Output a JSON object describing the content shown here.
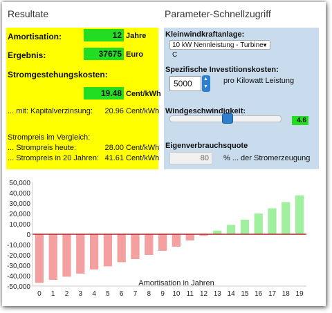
{
  "results": {
    "heading": "Resultate",
    "amortisation": {
      "label": "Amortisation:",
      "value": "12",
      "unit": "Jahre"
    },
    "ergebnis": {
      "label": "Ergebnis:",
      "value": "37675",
      "unit": "Euro"
    },
    "strom_kosten": {
      "label": "Stromgestehungskosten:",
      "value": "19.48",
      "unit": "Cent/kWh"
    },
    "kapitalverzinsung": {
      "label": "... mit: Kapitalverzinsung:",
      "value": "20.96",
      "unit": "Cent/kWh"
    },
    "vergleich_label": "Strompreis im Vergleich:",
    "strompreis_heute": {
      "label": "... Strompreis heute:",
      "value": "28.00",
      "unit": "Cent/kWh"
    },
    "strompreis_20": {
      "label": "... Strompreis in 20 Jahren:",
      "value": "41.61",
      "unit": "Cent/kWh"
    }
  },
  "params": {
    "heading": "Parameter-Schnellzugriff",
    "anlage_label": "Kleinwindkraftanlage:",
    "anlage_selected": "10 kW Nennleistung - Turbine C",
    "invest_label": "Spezifische Investitionskosten:",
    "invest_value": "5000",
    "invest_unit": "pro Kilowatt Leistung",
    "wind_label": "Windgeschwindigkeit:",
    "wind_value": "4.6",
    "eigen_label": "Eigenverbrauchsquote",
    "eigen_value": "80",
    "eigen_unit": "% ... der Stromerzeugung"
  },
  "colors": {
    "panel_left": "#ffff00",
    "panel_right": "#c9dcee",
    "highlight": "#22dd22",
    "bar_negative": "#f5a0a0",
    "bar_positive": "#a0f0a0",
    "zero_line": "#b22222"
  },
  "chart_data": {
    "type": "bar",
    "xlabel": "Amortisation in Jahren",
    "categories": [
      "0",
      "1",
      "2",
      "3",
      "4",
      "5",
      "6",
      "7",
      "8",
      "9",
      "10",
      "11",
      "12",
      "13",
      "14",
      "15",
      "16",
      "17",
      "18",
      "19"
    ],
    "values": [
      -47000,
      -44000,
      -41000,
      -38000,
      -34000,
      -31000,
      -27000,
      -24000,
      -20000,
      -16000,
      -12000,
      -6000,
      -1500,
      3500,
      9000,
      14000,
      20000,
      25000,
      31000,
      37500
    ],
    "ylim": [
      -50000,
      50000
    ],
    "yticks": [
      {
        "v": 50000,
        "label": "50,000"
      },
      {
        "v": 40000,
        "label": "40,000"
      },
      {
        "v": 30000,
        "label": "30,000"
      },
      {
        "v": 20000,
        "label": "20,000"
      },
      {
        "v": 10000,
        "label": "10,000"
      },
      {
        "v": 0,
        "label": "0"
      },
      {
        "v": -10000,
        "label": "-10,000"
      },
      {
        "v": -20000,
        "label": "-20,000"
      },
      {
        "v": -30000,
        "label": "-30,000"
      },
      {
        "v": -40000,
        "label": "-40,000"
      },
      {
        "v": -50000,
        "label": "-50,000"
      }
    ]
  }
}
